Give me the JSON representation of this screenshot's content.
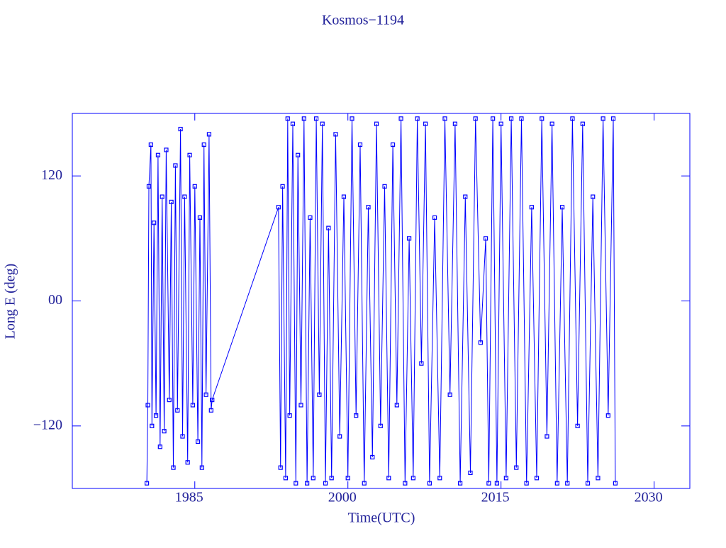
{
  "chart_data": {
    "type": "line",
    "title": "Kosmos−1194",
    "x_label": "Time(UTC)",
    "y_label": "Long E (deg)",
    "color": "#0000ff",
    "text_color": "#22229a",
    "xlim": [
      1973,
      2033.5
    ],
    "xticks": [
      1985,
      2000,
      2015,
      2030
    ],
    "ylim": [
      -180,
      180
    ],
    "yticks": [
      120,
      {
        "value": 0,
        "label": "00"
      },
      {
        "value": -120,
        "label": "−120"
      }
    ],
    "x": [
      1980.3,
      1980.4,
      1980.5,
      1980.7,
      1980.8,
      1981.0,
      1981.2,
      1981.4,
      1981.6,
      1981.8,
      1982.0,
      1982.2,
      1982.5,
      1982.7,
      1982.9,
      1983.1,
      1983.3,
      1983.6,
      1983.8,
      1984.0,
      1984.3,
      1984.5,
      1984.8,
      1985.0,
      1985.3,
      1985.5,
      1985.7,
      1985.9,
      1986.1,
      1986.4,
      1986.6,
      1986.7,
      1993.2,
      1993.4,
      1993.6,
      1993.9,
      1994.1,
      1994.3,
      1994.6,
      1994.9,
      1995.1,
      1995.4,
      1995.7,
      1996.0,
      1996.3,
      1996.6,
      1996.9,
      1997.2,
      1997.5,
      1997.8,
      1998.1,
      1998.4,
      1998.8,
      1999.2,
      1999.6,
      2000.0,
      2000.4,
      2000.8,
      2001.2,
      2001.6,
      2002.0,
      2002.4,
      2002.8,
      2003.2,
      2003.6,
      2004.0,
      2004.4,
      2004.8,
      2005.2,
      2005.6,
      2006.0,
      2006.4,
      2006.8,
      2007.2,
      2007.6,
      2008.0,
      2008.5,
      2009.0,
      2009.5,
      2010.0,
      2010.5,
      2011.0,
      2011.5,
      2012.0,
      2012.5,
      2013.0,
      2013.5,
      2013.8,
      2014.2,
      2014.6,
      2015.0,
      2015.5,
      2016.0,
      2016.5,
      2017.0,
      2017.5,
      2018.0,
      2018.5,
      2019.0,
      2019.5,
      2020.0,
      2020.5,
      2021.0,
      2021.5,
      2022.0,
      2022.5,
      2023.0,
      2023.5,
      2024.0,
      2024.5,
      2025.0,
      2025.5,
      2026.0,
      2026.2
    ],
    "values": [
      -175,
      -100,
      110,
      150,
      -120,
      75,
      -110,
      140,
      -140,
      100,
      -125,
      145,
      -95,
      95,
      -160,
      130,
      -105,
      165,
      -130,
      100,
      -155,
      140,
      -100,
      110,
      -135,
      80,
      -160,
      150,
      -90,
      160,
      -105,
      -95,
      90,
      -160,
      110,
      -170,
      175,
      -110,
      170,
      -175,
      140,
      -100,
      175,
      -175,
      80,
      -170,
      175,
      -90,
      170,
      -175,
      70,
      -170,
      160,
      -130,
      100,
      -170,
      175,
      -110,
      150,
      -175,
      90,
      -150,
      170,
      -120,
      110,
      -170,
      150,
      -100,
      175,
      -175,
      60,
      -170,
      175,
      -60,
      170,
      -175,
      80,
      -170,
      175,
      -90,
      170,
      -175,
      100,
      -165,
      175,
      -40,
      60,
      -175,
      175,
      -175,
      170,
      -170,
      175,
      -160,
      175,
      -175,
      90,
      -170,
      175,
      -130,
      170,
      -175,
      90,
      -175,
      175,
      -120,
      170,
      -175,
      100,
      -170,
      175,
      -110,
      175,
      -175
    ]
  }
}
